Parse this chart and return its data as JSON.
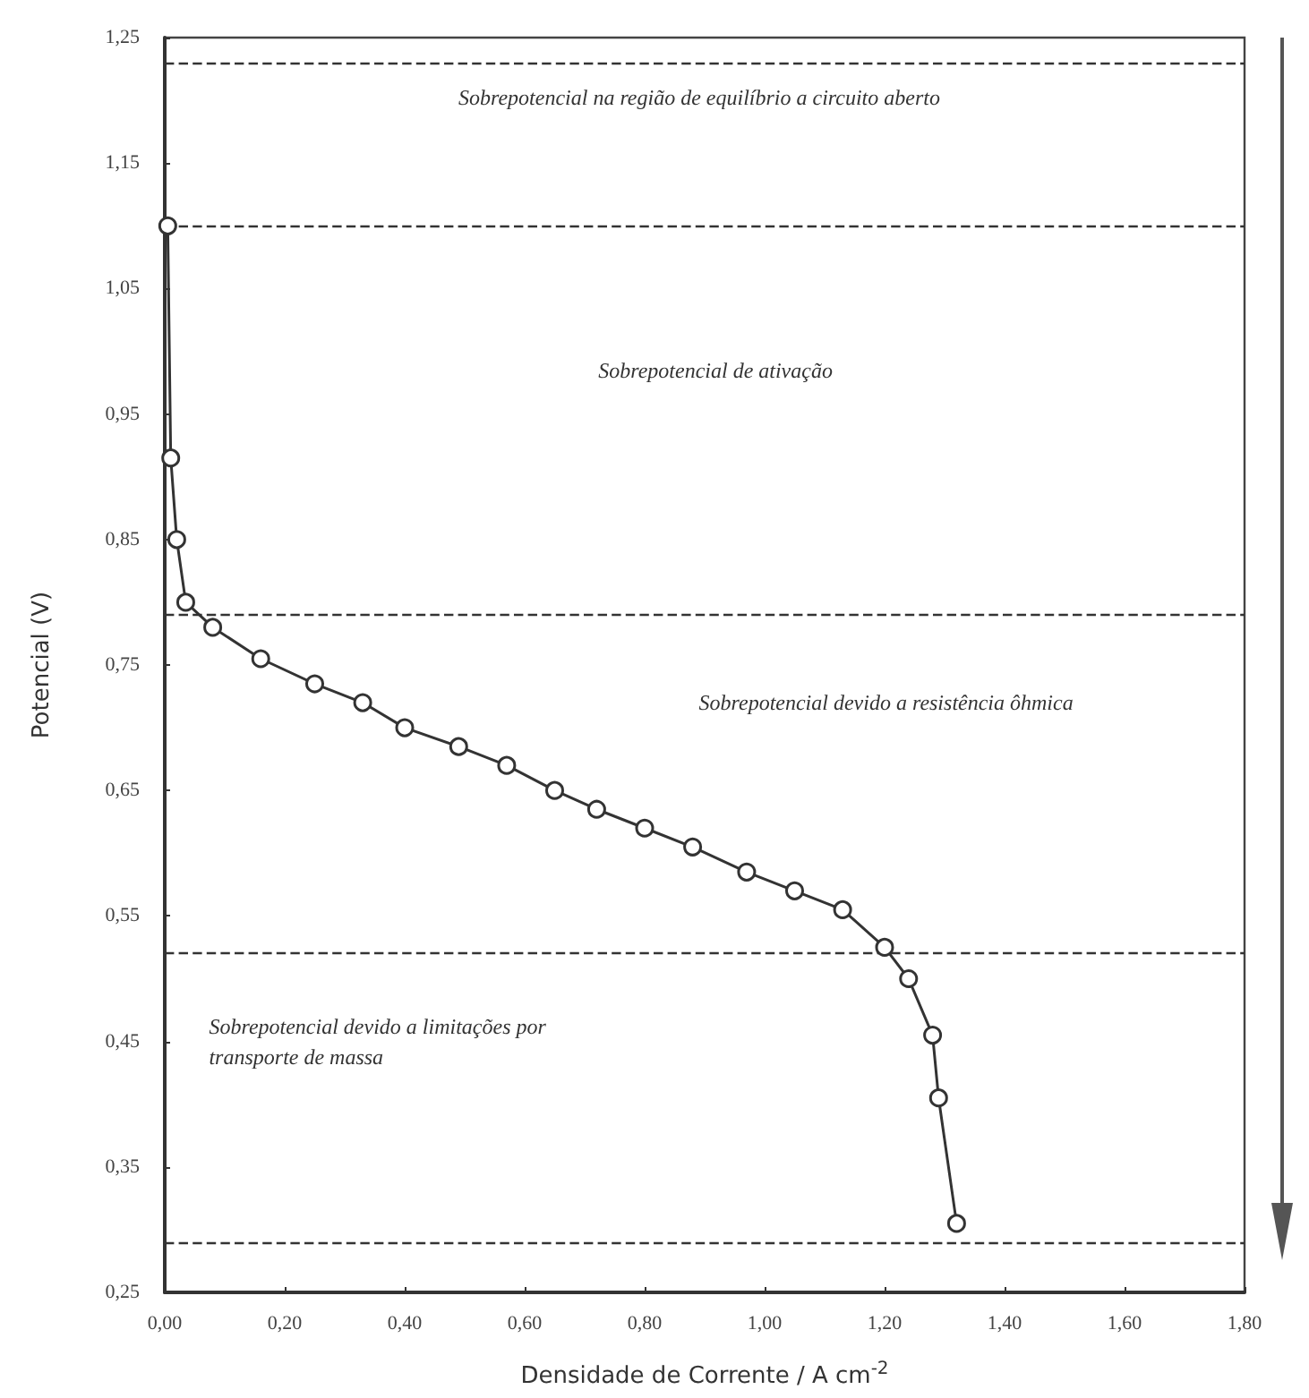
{
  "chart_data": {
    "type": "line",
    "xlabel": "Densidade de Corrente / A cm$^{-2}$",
    "ylabel": "Potencial (V)",
    "x": [
      0.005,
      0.01,
      0.02,
      0.035,
      0.08,
      0.16,
      0.25,
      0.33,
      0.4,
      0.49,
      0.57,
      0.65,
      0.72,
      0.8,
      0.88,
      0.97,
      1.05,
      1.13,
      1.2,
      1.24,
      1.28,
      1.29,
      1.32
    ],
    "series": [
      {
        "color": "#333333",
        "values": [
          1.1,
          0.915,
          0.85,
          0.8,
          0.78,
          0.755,
          0.735,
          0.72,
          0.7,
          0.685,
          0.67,
          0.65,
          0.635,
          0.62,
          0.605,
          0.585,
          0.57,
          0.555,
          0.525,
          0.5,
          0.455,
          0.405,
          0.305
        ]
      }
    ],
    "marker": "circle",
    "line_style": "solid",
    "grid": false,
    "xlim": [
      0,
      1.8
    ],
    "xticks": [
      {
        "value": 0,
        "label": "0,00"
      },
      {
        "value": 0.2,
        "label": "0,20"
      },
      {
        "value": 0.4,
        "label": "0,40"
      },
      {
        "value": 0.6,
        "label": "0,60"
      },
      {
        "value": 0.8,
        "label": "0,80"
      },
      {
        "value": 1.0,
        "label": "1,00"
      },
      {
        "value": 1.2,
        "label": "1,20"
      },
      {
        "value": 1.4,
        "label": "1,40"
      },
      {
        "value": 1.6,
        "label": "1,60"
      },
      {
        "value": 1.8,
        "label": "1,80"
      }
    ],
    "ylim": [
      0.25,
      1.25
    ],
    "yticks": [
      {
        "value": 0.25,
        "label": "0,25"
      },
      {
        "value": 0.35,
        "label": "0,35"
      },
      {
        "value": 0.45,
        "label": "0,45"
      },
      {
        "value": 0.55,
        "label": "0,55"
      },
      {
        "value": 0.65,
        "label": "0,65"
      },
      {
        "value": 0.75,
        "label": "0,75"
      },
      {
        "value": 0.85,
        "label": "0,85"
      },
      {
        "value": 0.95,
        "label": "0,95"
      },
      {
        "value": 1.05,
        "label": "1,05"
      },
      {
        "value": 1.15,
        "label": "1,15"
      },
      {
        "value": 1.25,
        "label": "1,25"
      }
    ],
    "ref_lines": [
      {
        "axis": "y",
        "value": 1.23,
        "color": "#333333",
        "line_style": "dashed"
      },
      {
        "axis": "y",
        "value": 1.1,
        "color": "#333333",
        "line_style": "dashed"
      },
      {
        "axis": "y",
        "value": 0.79,
        "color": "#333333",
        "line_style": "dashed"
      },
      {
        "axis": "y",
        "value": 0.52,
        "color": "#333333",
        "line_style": "dashed"
      },
      {
        "axis": "y",
        "value": 0.29,
        "color": "#333333",
        "line_style": "dashed"
      }
    ],
    "annotations": [
      "Sobrepotencial na região de equilíbrio a circuito aberto",
      "Sobrepotencial de ativação",
      "Sobrepotencial devido a resistência ôhmica",
      "Sobrepotencial devido a limitações por\ntransporte de massa"
    ]
  }
}
